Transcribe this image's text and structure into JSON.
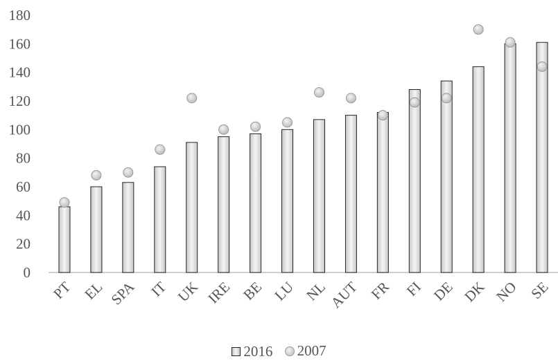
{
  "chart_data": {
    "type": "bar",
    "categories": [
      "PT",
      "EL",
      "SPA",
      "IT",
      "UK",
      "IRE",
      "BE",
      "LU",
      "NL",
      "AUT",
      "FR",
      "FI",
      "DE",
      "DK",
      "NO",
      "SE"
    ],
    "series": [
      {
        "name": "2016",
        "type": "bar",
        "values": [
          46,
          60,
          63,
          74,
          91,
          95,
          97,
          100,
          107,
          110,
          112,
          128,
          134,
          144,
          160,
          161
        ]
      },
      {
        "name": "2007",
        "type": "scatter",
        "values": [
          49,
          68,
          70,
          86,
          122,
          100,
          102,
          105,
          126,
          122,
          110,
          119,
          122,
          170,
          161,
          144
        ]
      }
    ],
    "ylim": [
      0,
      180
    ],
    "yticks": [
      0,
      20,
      40,
      60,
      80,
      100,
      120,
      140,
      160,
      180
    ],
    "grid": false,
    "legend_position": "bottom",
    "colors": {
      "bar_fill_edge": "#c8c8c8",
      "bar_fill_center": "#f4f4f4",
      "bar_stroke": "#222222",
      "marker_fill": "#cccccc",
      "marker_stroke": "#999999",
      "axis": "#bfbfbf",
      "text": "#555555"
    }
  }
}
